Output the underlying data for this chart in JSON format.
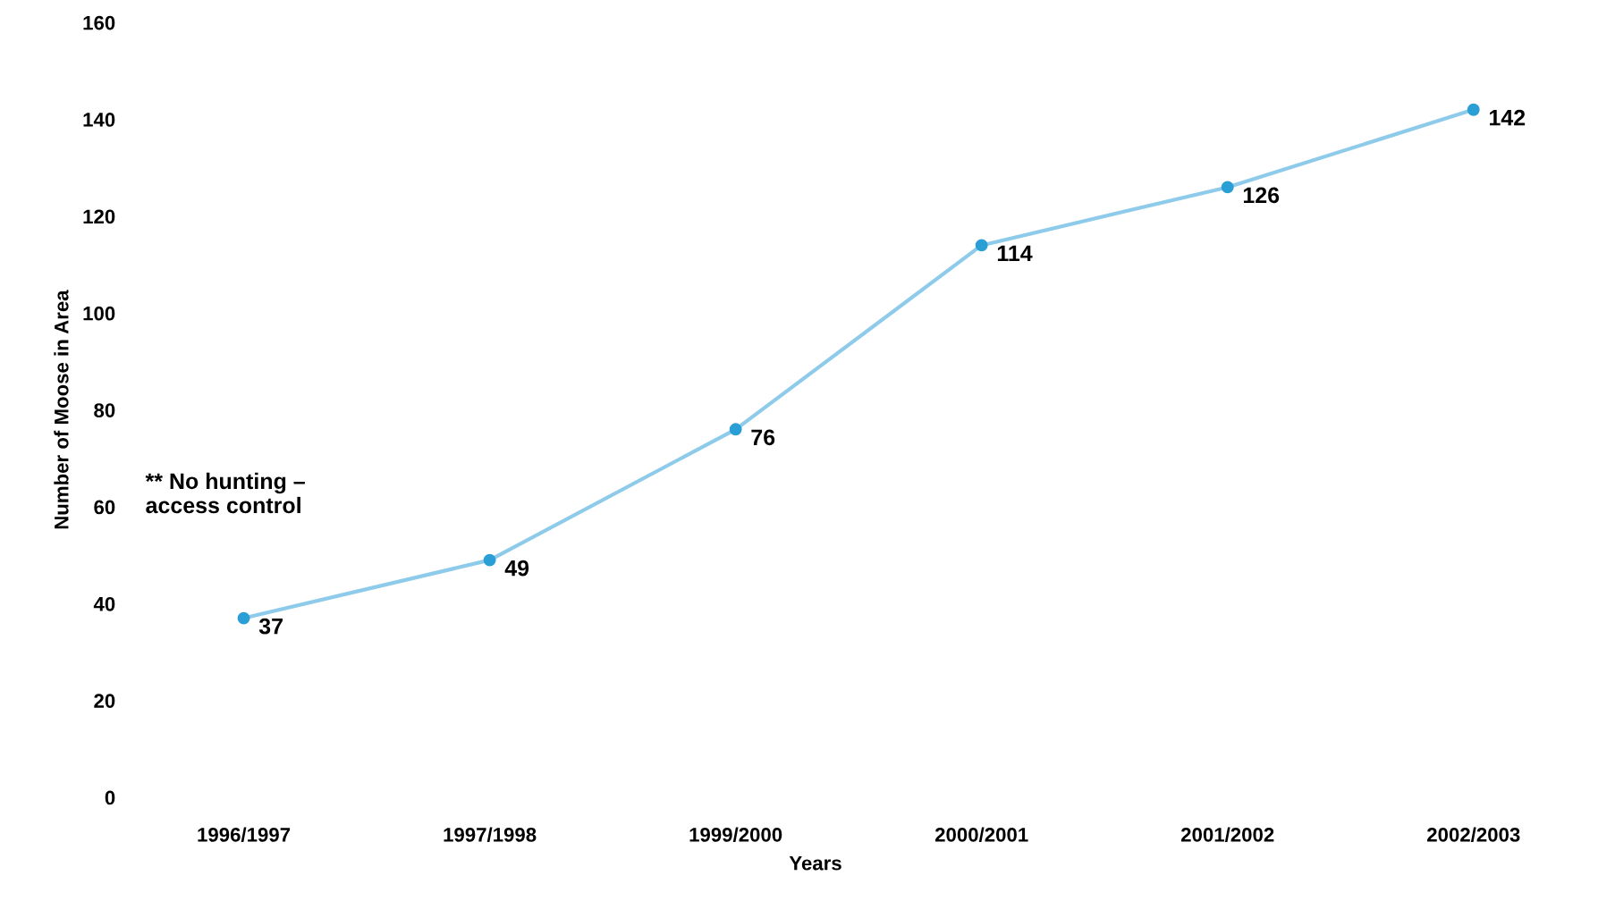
{
  "chart_data": {
    "type": "line",
    "xlabel": "Years",
    "ylabel": "Number of Moose in Area",
    "categories": [
      "1996/1997",
      "1997/1998",
      "1999/2000",
      "2000/2001",
      "2001/2002",
      "2002/2003"
    ],
    "series": [
      {
        "color": "#8ecbea",
        "values": [
          37,
          49,
          76,
          114,
          126,
          142
        ]
      }
    ],
    "marker": "circle",
    "data_labels": true,
    "ylim": [
      0,
      160
    ],
    "yticks": [
      0,
      20,
      40,
      60,
      80,
      100,
      120,
      140,
      160
    ],
    "annotations": [
      "** No hunting –\naccess control"
    ]
  }
}
